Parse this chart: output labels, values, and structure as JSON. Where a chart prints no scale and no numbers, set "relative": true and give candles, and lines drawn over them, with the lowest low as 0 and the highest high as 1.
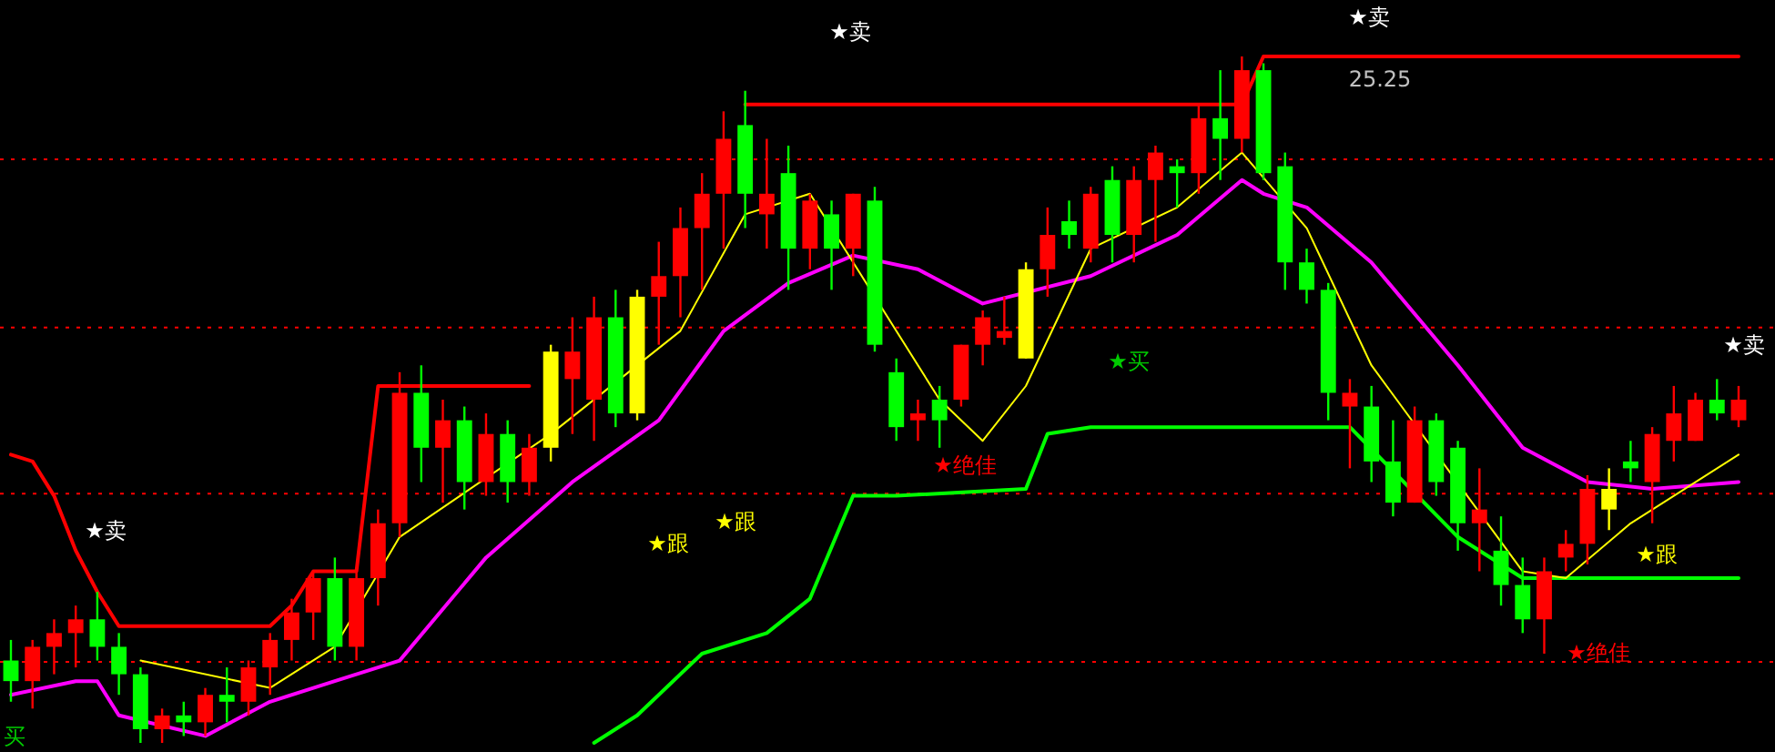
{
  "chart_data": {
    "type": "candlestick",
    "relative": true,
    "categories": [
      null,
      null,
      null,
      null,
      null,
      null,
      null,
      null,
      null,
      null,
      null,
      null,
      null,
      null,
      null,
      null,
      null,
      null,
      null,
      null,
      null,
      null,
      null,
      null,
      null,
      null,
      null,
      null,
      null,
      null,
      null,
      null,
      null,
      null,
      null,
      null,
      null,
      null,
      null,
      null,
      null,
      null,
      null,
      null,
      null,
      null,
      null,
      null,
      null,
      null,
      null,
      null,
      null,
      null,
      null,
      null,
      null,
      null,
      null,
      null,
      null,
      null,
      null,
      null,
      null,
      null,
      null,
      null,
      null,
      null,
      null,
      null,
      null,
      null,
      null,
      null,
      null,
      null,
      null,
      null,
      null
    ],
    "ohlc": [
      [
        0.12,
        0.15,
        0.06,
        0.09
      ],
      [
        0.09,
        0.15,
        0.05,
        0.14
      ],
      [
        0.14,
        0.18,
        0.1,
        0.16
      ],
      [
        0.16,
        0.2,
        0.11,
        0.18
      ],
      [
        0.18,
        0.22,
        0.12,
        0.14
      ],
      [
        0.14,
        0.16,
        0.07,
        0.1
      ],
      [
        0.1,
        0.11,
        0.0,
        0.02
      ],
      [
        0.02,
        0.05,
        0.0,
        0.04
      ],
      [
        0.04,
        0.06,
        0.01,
        0.03
      ],
      [
        0.03,
        0.08,
        0.01,
        0.07
      ],
      [
        0.07,
        0.11,
        0.03,
        0.06
      ],
      [
        0.06,
        0.12,
        0.04,
        0.11
      ],
      [
        0.11,
        0.16,
        0.07,
        0.15
      ],
      [
        0.15,
        0.21,
        0.12,
        0.19
      ],
      [
        0.19,
        0.25,
        0.15,
        0.24
      ],
      [
        0.24,
        0.27,
        0.12,
        0.14
      ],
      [
        0.14,
        0.25,
        0.12,
        0.24
      ],
      [
        0.24,
        0.34,
        0.2,
        0.32
      ],
      [
        0.32,
        0.54,
        0.3,
        0.51
      ],
      [
        0.51,
        0.55,
        0.38,
        0.43
      ],
      [
        0.43,
        0.5,
        0.35,
        0.47
      ],
      [
        0.47,
        0.49,
        0.34,
        0.38
      ],
      [
        0.38,
        0.48,
        0.36,
        0.45
      ],
      [
        0.45,
        0.47,
        0.35,
        0.38
      ],
      [
        0.38,
        0.45,
        0.36,
        0.43
      ],
      [
        0.43,
        0.58,
        0.41,
        0.57
      ],
      [
        0.53,
        0.62,
        0.45,
        0.57
      ],
      [
        0.5,
        0.65,
        0.44,
        0.62
      ],
      [
        0.62,
        0.66,
        0.46,
        0.48
      ],
      [
        0.48,
        0.66,
        0.47,
        0.65
      ],
      [
        0.65,
        0.73,
        0.58,
        0.68
      ],
      [
        0.68,
        0.78,
        0.62,
        0.75
      ],
      [
        0.75,
        0.83,
        0.66,
        0.8
      ],
      [
        0.8,
        0.92,
        0.72,
        0.88
      ],
      [
        0.9,
        0.95,
        0.75,
        0.8
      ],
      [
        0.77,
        0.88,
        0.72,
        0.8
      ],
      [
        0.83,
        0.87,
        0.66,
        0.72
      ],
      [
        0.72,
        0.8,
        0.69,
        0.79
      ],
      [
        0.77,
        0.79,
        0.66,
        0.72
      ],
      [
        0.72,
        0.8,
        0.68,
        0.8
      ],
      [
        0.79,
        0.81,
        0.57,
        0.58
      ],
      [
        0.54,
        0.56,
        0.44,
        0.46
      ],
      [
        0.47,
        0.5,
        0.44,
        0.48
      ],
      [
        0.5,
        0.52,
        0.43,
        0.47
      ],
      [
        0.5,
        0.58,
        0.49,
        0.58
      ],
      [
        0.58,
        0.63,
        0.55,
        0.62
      ],
      [
        0.59,
        0.65,
        0.58,
        0.6
      ],
      [
        0.56,
        0.7,
        0.56,
        0.69
      ],
      [
        0.69,
        0.78,
        0.65,
        0.74
      ],
      [
        0.76,
        0.79,
        0.72,
        0.74
      ],
      [
        0.72,
        0.81,
        0.7,
        0.8
      ],
      [
        0.82,
        0.84,
        0.7,
        0.74
      ],
      [
        0.74,
        0.84,
        0.7,
        0.82
      ],
      [
        0.82,
        0.87,
        0.73,
        0.86
      ],
      [
        0.84,
        0.85,
        0.78,
        0.83
      ],
      [
        0.83,
        0.93,
        0.8,
        0.91
      ],
      [
        0.91,
        0.98,
        0.82,
        0.88
      ],
      [
        0.88,
        1.0,
        0.86,
        0.98
      ],
      [
        0.98,
        0.99,
        0.82,
        0.83
      ],
      [
        0.84,
        0.86,
        0.66,
        0.7
      ],
      [
        0.7,
        0.72,
        0.64,
        0.66
      ],
      [
        0.66,
        0.67,
        0.47,
        0.51
      ],
      [
        0.49,
        0.53,
        0.4,
        0.51
      ],
      [
        0.49,
        0.52,
        0.38,
        0.41
      ],
      [
        0.41,
        0.47,
        0.33,
        0.35
      ],
      [
        0.35,
        0.49,
        0.35,
        0.47
      ],
      [
        0.47,
        0.48,
        0.36,
        0.38
      ],
      [
        0.43,
        0.44,
        0.28,
        0.32
      ],
      [
        0.32,
        0.4,
        0.25,
        0.34
      ],
      [
        0.28,
        0.33,
        0.2,
        0.23
      ],
      [
        0.23,
        0.27,
        0.16,
        0.18
      ],
      [
        0.18,
        0.27,
        0.13,
        0.25
      ],
      [
        0.27,
        0.31,
        0.25,
        0.29
      ],
      [
        0.29,
        0.39,
        0.26,
        0.37
      ],
      [
        0.34,
        0.4,
        0.31,
        0.37
      ],
      [
        0.41,
        0.44,
        0.38,
        0.4
      ],
      [
        0.38,
        0.46,
        0.32,
        0.45
      ],
      [
        0.44,
        0.52,
        0.41,
        0.48
      ],
      [
        0.44,
        0.51,
        0.44,
        0.5
      ],
      [
        0.5,
        0.53,
        0.47,
        0.48
      ],
      [
        0.47,
        0.52,
        0.46,
        0.5
      ]
    ],
    "colors": [
      "#00ff00",
      "#ff0000",
      "#ff0000",
      "#ff0000",
      "#00ff00",
      "#00ff00",
      "#00ff00",
      "#ff0000",
      "#00ff00",
      "#ff0000",
      "#00ff00",
      "#ff0000",
      "#ff0000",
      "#ff0000",
      "#ff0000",
      "#00ff00",
      "#ff0000",
      "#ff0000",
      "#ff0000",
      "#00ff00",
      "#ff0000",
      "#00ff00",
      "#ff0000",
      "#00ff00",
      "#ff0000",
      "#ffff00",
      "#ff0000",
      "#ff0000",
      "#00ff00",
      "#ffff00",
      "#ff0000",
      "#ff0000",
      "#ff0000",
      "#ff0000",
      "#00ff00",
      "#ff0000",
      "#00ff00",
      "#ff0000",
      "#00ff00",
      "#ff0000",
      "#00ff00",
      "#00ff00",
      "#ff0000",
      "#00ff00",
      "#ff0000",
      "#ff0000",
      "#ff0000",
      "#ffff00",
      "#ff0000",
      "#00ff00",
      "#ff0000",
      "#00ff00",
      "#ff0000",
      "#ff0000",
      "#00ff00",
      "#ff0000",
      "#00ff00",
      "#ff0000",
      "#00ff00",
      "#00ff00",
      "#00ff00",
      "#00ff00",
      "#ff0000",
      "#00ff00",
      "#00ff00",
      "#ff0000",
      "#00ff00",
      "#00ff00",
      "#ff0000",
      "#00ff00",
      "#00ff00",
      "#ff0000",
      "#ff0000",
      "#ff0000",
      "#ffff00",
      "#00ff00",
      "#ff0000",
      "#ff0000",
      "#ff0000",
      "#00ff00",
      "#ff0000"
    ],
    "series": [
      {
        "type": "line",
        "color": "#ff0000",
        "values": [
          0.42,
          0.41,
          0.36,
          0.28,
          0.22,
          0.17,
          null,
          null,
          null,
          null,
          null,
          null,
          0.17,
          0.2,
          0.25,
          null,
          0.25,
          0.52,
          null,
          null,
          null,
          null,
          null,
          null,
          0.52,
          null,
          null,
          null,
          null,
          null,
          null,
          null,
          null,
          null,
          null,
          null,
          null,
          null,
          null,
          null,
          null,
          null,
          null,
          null,
          null,
          null,
          null,
          null,
          null,
          null,
          null,
          null,
          null,
          null,
          null,
          null,
          null,
          null,
          null,
          null,
          null,
          null,
          null,
          null,
          null,
          null,
          null,
          null,
          null,
          null,
          null,
          null,
          null,
          null,
          null,
          null,
          null,
          null,
          null,
          null,
          null
        ]
      },
      {
        "type": "line",
        "color": "#ff0000",
        "values": [
          null,
          null,
          null,
          null,
          null,
          null,
          null,
          null,
          null,
          null,
          null,
          null,
          null,
          null,
          null,
          null,
          null,
          null,
          null,
          null,
          null,
          null,
          null,
          null,
          null,
          null,
          null,
          null,
          null,
          null,
          null,
          null,
          null,
          null,
          0.93,
          null,
          null,
          null,
          null,
          null,
          null,
          null,
          null,
          null,
          null,
          null,
          null,
          null,
          null,
          null,
          null,
          null,
          null,
          null,
          null,
          null,
          null,
          0.93,
          1.0,
          null,
          null,
          null,
          null,
          null,
          null,
          null,
          null,
          null,
          null,
          null,
          null,
          null,
          null,
          null,
          null,
          null,
          null,
          null,
          null,
          null,
          1.0
        ]
      },
      {
        "type": "line",
        "color": "#ff00ff",
        "values": [
          0.07,
          null,
          null,
          0.09,
          0.09,
          0.04,
          null,
          null,
          null,
          0.01,
          null,
          null,
          0.06,
          null,
          null,
          0.09,
          null,
          null,
          0.12,
          null,
          null,
          null,
          0.27,
          null,
          null,
          null,
          0.38,
          null,
          null,
          null,
          0.47,
          null,
          null,
          0.6,
          null,
          null,
          0.67,
          null,
          null,
          0.71,
          null,
          null,
          0.69,
          null,
          null,
          0.64,
          null,
          null,
          null,
          null,
          0.68,
          null,
          null,
          null,
          0.74,
          null,
          null,
          0.82,
          0.8,
          null,
          0.78,
          null,
          null,
          0.7,
          null,
          null,
          null,
          0.55,
          null,
          null,
          0.43,
          null,
          null,
          0.38,
          null,
          null,
          0.37,
          null,
          null,
          null,
          0.38
        ]
      },
      {
        "type": "line",
        "color": "#00ff00",
        "values": [
          null,
          null,
          null,
          null,
          null,
          null,
          null,
          null,
          null,
          null,
          null,
          null,
          null,
          null,
          null,
          null,
          null,
          null,
          null,
          null,
          null,
          null,
          null,
          null,
          null,
          null,
          null,
          0.0,
          null,
          0.04,
          null,
          null,
          0.13,
          null,
          null,
          0.16,
          null,
          0.21,
          null,
          0.36,
          null,
          0.36,
          null,
          null,
          null,
          null,
          null,
          0.37,
          0.45,
          null,
          0.46,
          null,
          null,
          null,
          null,
          null,
          null,
          null,
          null,
          0.46,
          null,
          null,
          0.46,
          null,
          null,
          null,
          null,
          0.3,
          null,
          null,
          0.24,
          null,
          null,
          null,
          null,
          null,
          null,
          null,
          null,
          null,
          0.24
        ]
      },
      {
        "type": "line",
        "color": "#ffff00",
        "values": [
          null,
          null,
          null,
          null,
          null,
          null,
          0.12,
          null,
          null,
          null,
          null,
          null,
          0.08,
          null,
          null,
          0.14,
          null,
          null,
          0.3,
          null,
          null,
          null,
          null,
          null,
          null,
          0.45,
          null,
          null,
          null,
          null,
          null,
          0.6,
          null,
          null,
          0.77,
          null,
          null,
          0.8,
          null,
          null,
          null,
          null,
          null,
          0.5,
          null,
          0.44,
          null,
          0.52,
          null,
          null,
          0.72,
          null,
          null,
          null,
          0.78,
          null,
          null,
          0.86,
          null,
          null,
          0.75,
          null,
          null,
          0.55,
          null,
          null,
          null,
          null,
          null,
          null,
          0.25,
          null,
          0.24,
          null,
          null,
          0.32,
          null,
          null,
          null,
          null,
          0.42
        ]
      }
    ],
    "ref_lines": [
      {
        "axis": "y",
        "value": 0.85,
        "color": "#ff0000",
        "line_style": "dotted"
      },
      {
        "axis": "y",
        "value": 0.605,
        "color": "#ff0000",
        "line_style": "dotted"
      },
      {
        "axis": "y",
        "value": 0.363,
        "color": "#ff0000",
        "line_style": "dotted"
      },
      {
        "axis": "y",
        "value": 0.118,
        "color": "#ff0000",
        "line_style": "dotted"
      }
    ],
    "annotations": [
      "★卖",
      "★卖",
      "★卖",
      "★卖",
      "★跟",
      "★跟",
      "★跟",
      "★买",
      "买",
      "★绝佳",
      "★绝佳",
      "25.25"
    ]
  }
}
